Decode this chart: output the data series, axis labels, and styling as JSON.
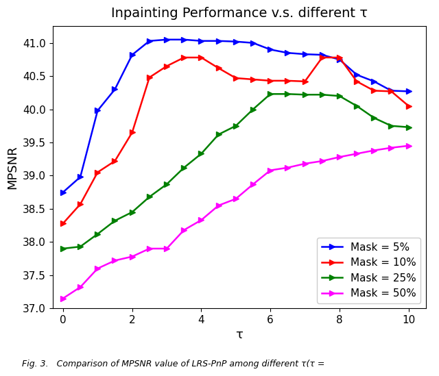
{
  "title": "Inpainting Performance v.s. different τ",
  "xlabel": "τ",
  "ylabel": "MPSNR",
  "xlim": [
    -0.3,
    10.5
  ],
  "ylim": [
    37.0,
    41.25
  ],
  "yticks": [
    37.0,
    37.5,
    38.0,
    38.5,
    39.0,
    39.5,
    40.0,
    40.5,
    41.0
  ],
  "xticks": [
    0,
    2,
    4,
    6,
    8,
    10
  ],
  "series": [
    {
      "label": "Mask = 5%",
      "color": "blue",
      "x": [
        0,
        0.5,
        1,
        1.5,
        2,
        2.5,
        3,
        3.5,
        4,
        4.5,
        5,
        5.5,
        6,
        6.5,
        7,
        7.5,
        8,
        8.5,
        9,
        9.5,
        10
      ],
      "y": [
        38.75,
        38.98,
        39.98,
        40.3,
        40.82,
        41.03,
        41.05,
        41.05,
        41.03,
        41.03,
        41.02,
        41.0,
        40.9,
        40.85,
        40.83,
        40.82,
        40.75,
        40.52,
        40.42,
        40.28,
        40.27
      ]
    },
    {
      "label": "Mask = 10%",
      "color": "red",
      "x": [
        0,
        0.5,
        1,
        1.5,
        2,
        2.5,
        3,
        3.5,
        4,
        4.5,
        5,
        5.5,
        6,
        6.5,
        7,
        7.5,
        8,
        8.5,
        9,
        9.5,
        10
      ],
      "y": [
        38.28,
        38.57,
        39.05,
        39.22,
        39.65,
        40.48,
        40.65,
        40.78,
        40.78,
        40.62,
        40.47,
        40.45,
        40.43,
        40.43,
        40.42,
        40.78,
        40.78,
        40.42,
        40.28,
        40.27,
        40.05
      ]
    },
    {
      "label": "Mask = 25%",
      "color": "green",
      "x": [
        0,
        0.5,
        1,
        1.5,
        2,
        2.5,
        3,
        3.5,
        4,
        4.5,
        5,
        5.5,
        6,
        6.5,
        7,
        7.5,
        8,
        8.5,
        9,
        9.5,
        10
      ],
      "y": [
        37.9,
        37.93,
        38.12,
        38.32,
        38.45,
        38.68,
        38.87,
        39.12,
        39.33,
        39.62,
        39.75,
        40.0,
        40.23,
        40.23,
        40.22,
        40.22,
        40.2,
        40.05,
        39.87,
        39.75,
        39.73
      ]
    },
    {
      "label": "Mask = 50%",
      "color": "magenta",
      "x": [
        0,
        0.5,
        1,
        1.5,
        2,
        2.5,
        3,
        3.5,
        4,
        4.5,
        5,
        5.5,
        6,
        6.5,
        7,
        7.5,
        8,
        8.5,
        9,
        9.5,
        10
      ],
      "y": [
        37.15,
        37.32,
        37.6,
        37.72,
        37.78,
        37.9,
        37.9,
        38.18,
        38.33,
        38.55,
        38.65,
        38.87,
        39.08,
        39.12,
        39.18,
        39.22,
        39.28,
        39.33,
        39.38,
        39.42,
        39.45
      ]
    }
  ],
  "legend_loc": "lower right",
  "figsize": [
    6.4,
    5.49
  ],
  "dpi": 100,
  "caption": "Fig. 3.   Comparison of MPSNR value of LRS-PnP among different τ(τ =",
  "title_fontsize": 14,
  "label_fontsize": 13,
  "tick_fontsize": 11,
  "legend_fontsize": 11
}
